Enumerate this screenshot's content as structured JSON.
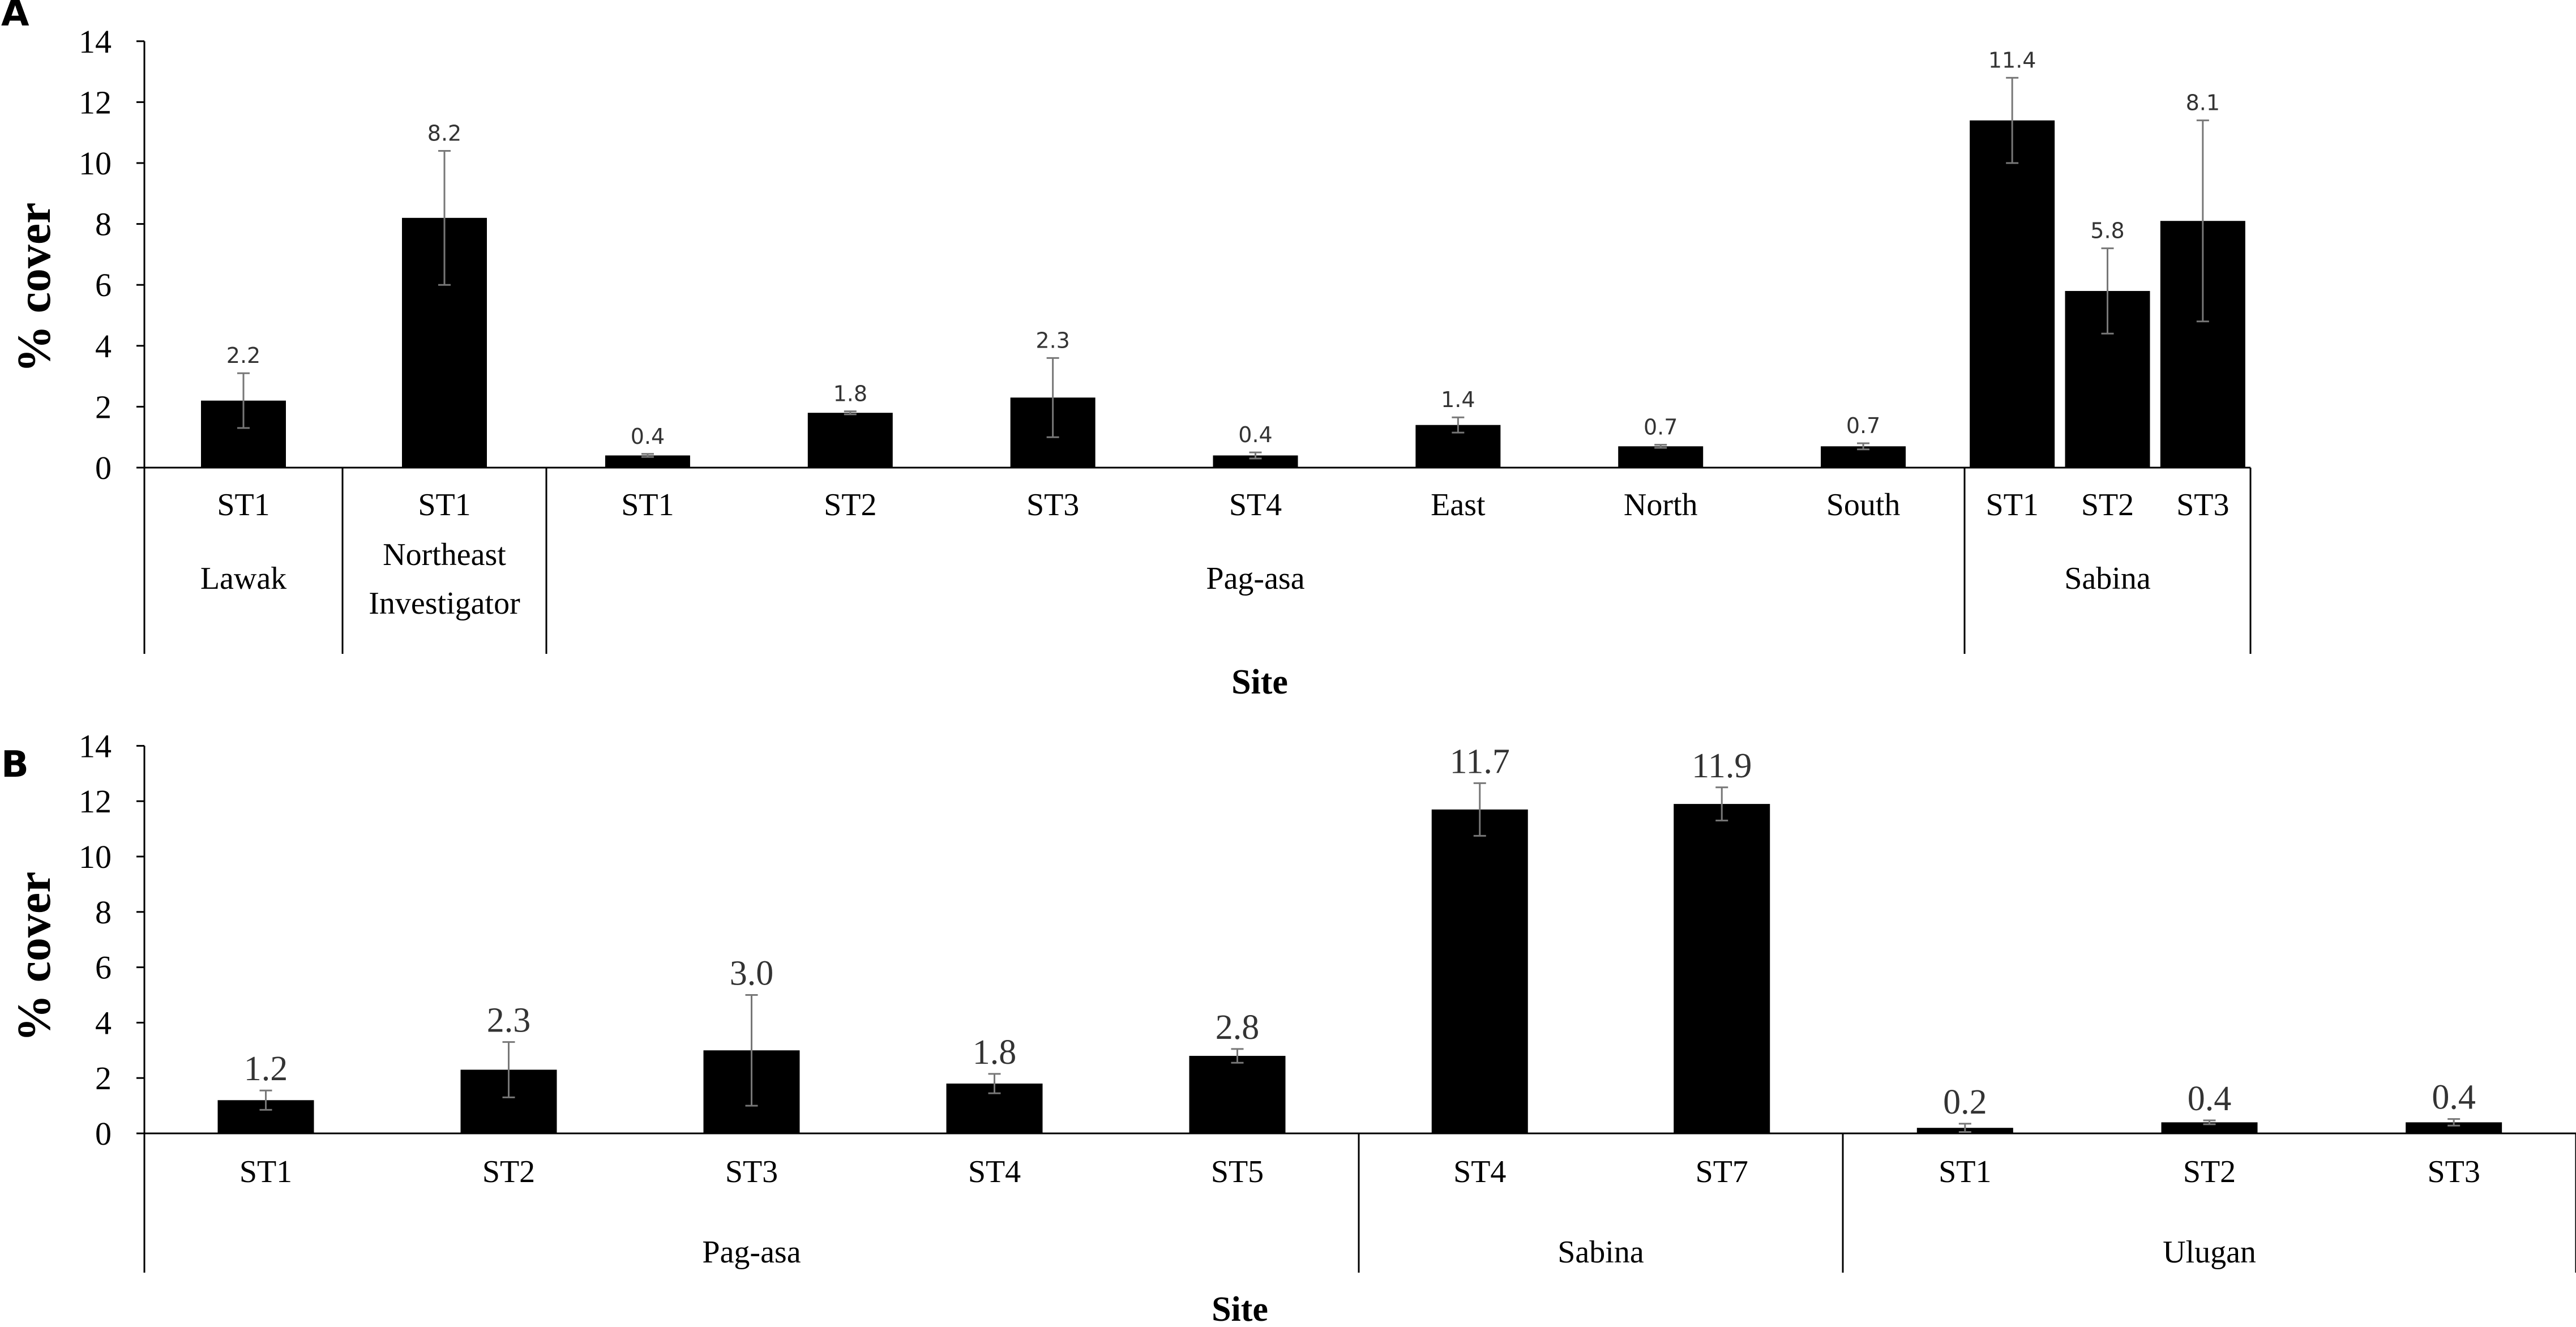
{
  "chart_data": [
    {
      "type": "bar",
      "panel_label": "A",
      "xlabel": "Site",
      "ylabel": "% cover",
      "ylim": [
        0,
        14
      ],
      "yticks": [
        0,
        2,
        4,
        6,
        8,
        10,
        12,
        14
      ],
      "grid": false,
      "bar_color": "#000000",
      "categories": [
        "ST1",
        "ST1",
        "ST1",
        "ST2",
        "ST3",
        "ST4",
        "East",
        "North",
        "South",
        "ST1",
        "ST2",
        "ST3"
      ],
      "category_sublabels": [
        "",
        "Northeast",
        "",
        "",
        "",
        "",
        "",
        "",
        "",
        "",
        "",
        ""
      ],
      "values": [
        2.2,
        8.2,
        0.4,
        1.8,
        2.3,
        0.4,
        1.4,
        0.7,
        0.7,
        11.4,
        5.8,
        8.1
      ],
      "value_labels": [
        "2.2",
        "8.2",
        "0.4",
        "1.8",
        "2.3",
        "0.4",
        "1.4",
        "0.7",
        "0.7",
        "11.4",
        "5.8",
        "8.1"
      ],
      "error": [
        0.9,
        2.2,
        0.05,
        0.05,
        1.3,
        0.1,
        0.25,
        0.05,
        0.1,
        1.4,
        1.4,
        3.3
      ],
      "groups": [
        {
          "name": "Lawak",
          "name_line2": "",
          "start": 0,
          "end": 0
        },
        {
          "name": "Investigator",
          "name_line2": "",
          "start": 1,
          "end": 1
        },
        {
          "name": "Pag-asa",
          "name_line2": "",
          "start": 2,
          "end": 8
        },
        {
          "name": "Sabina",
          "name_line2": "",
          "start": 9,
          "end": 11
        }
      ]
    },
    {
      "type": "bar",
      "panel_label": "B",
      "xlabel": "Site",
      "ylabel": "% cover",
      "ylim": [
        0,
        14
      ],
      "yticks": [
        0,
        2,
        4,
        6,
        8,
        10,
        12,
        14
      ],
      "grid": false,
      "bar_color": "#000000",
      "categories": [
        "ST1",
        "ST2",
        "ST3",
        "ST4",
        "ST5",
        "ST4",
        "ST7",
        "ST1",
        "ST2",
        "ST3"
      ],
      "category_sublabels": [
        "",
        "",
        "",
        "",
        "",
        "",
        "",
        "",
        "",
        ""
      ],
      "values": [
        1.2,
        2.3,
        3.0,
        1.8,
        2.8,
        11.7,
        11.9,
        0.2,
        0.4,
        0.4
      ],
      "value_labels": [
        "1.2",
        "2.3",
        "3.0",
        "1.8",
        "2.8",
        "11.7",
        "11.9",
        "0.2",
        "0.4",
        "0.4"
      ],
      "error": [
        0.35,
        1.0,
        2.0,
        0.35,
        0.25,
        0.95,
        0.6,
        0.15,
        0.07,
        0.12
      ],
      "groups": [
        {
          "name": "Pag-asa",
          "name_line2": "",
          "start": 0,
          "end": 4
        },
        {
          "name": "Sabina",
          "name_line2": "",
          "start": 5,
          "end": 6
        },
        {
          "name": "Ulugan",
          "name_line2": "",
          "start": 7,
          "end": 9
        }
      ]
    }
  ]
}
